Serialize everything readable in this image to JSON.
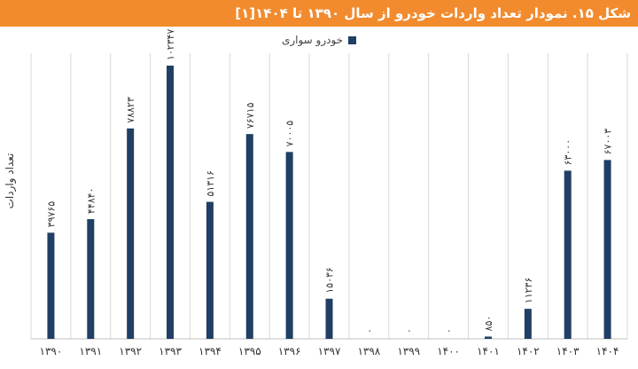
{
  "title": "شکل ۱۵. نمودار تعداد واردات خودرو از سال ۱۳۹۰ تا ۱۴۰۴[۱]",
  "colors": {
    "title_bg": "#f28b2e",
    "bar": "#1f3f64",
    "grid": "#d9d9d9"
  },
  "chart_data": {
    "type": "bar",
    "categories": [
      "۱۳۹۰",
      "۱۳۹۱",
      "۱۳۹۲",
      "۱۳۹۳",
      "۱۳۹۴",
      "۱۳۹۵",
      "۱۳۹۶",
      "۱۳۹۷",
      "۱۳۹۸",
      "۱۳۹۹",
      "۱۴۰۰",
      "۱۴۰۱",
      "۱۴۰۲",
      "۱۴۰۳",
      "۱۴۰۴"
    ],
    "series": [
      {
        "name": "خودرو سواری",
        "values": [
          39765,
          44840,
          78823,
          102347,
          51316,
          76715,
          70005,
          15036,
          0,
          0,
          0,
          850,
          11236,
          63000,
          67003
        ],
        "labels": [
          "۳۹۷۶۵",
          "۴۴۸۴۰",
          "۷۸۸۲۳",
          "۱۰۲۳۴۷",
          "۵۱۳۱۶",
          "۷۶۷۱۵",
          "۷۰۰۰۵",
          "۱۵۰۳۶",
          "۰",
          "۰",
          "۰",
          "۸۵۰",
          "۱۱۲۳۶",
          "۶۳۰۰۰",
          "۶۷۰۰۳"
        ]
      }
    ],
    "ylabel": "تعداد واردات",
    "ylim": [
      0,
      107000
    ],
    "grid": "vertical",
    "legend": "top-center"
  }
}
